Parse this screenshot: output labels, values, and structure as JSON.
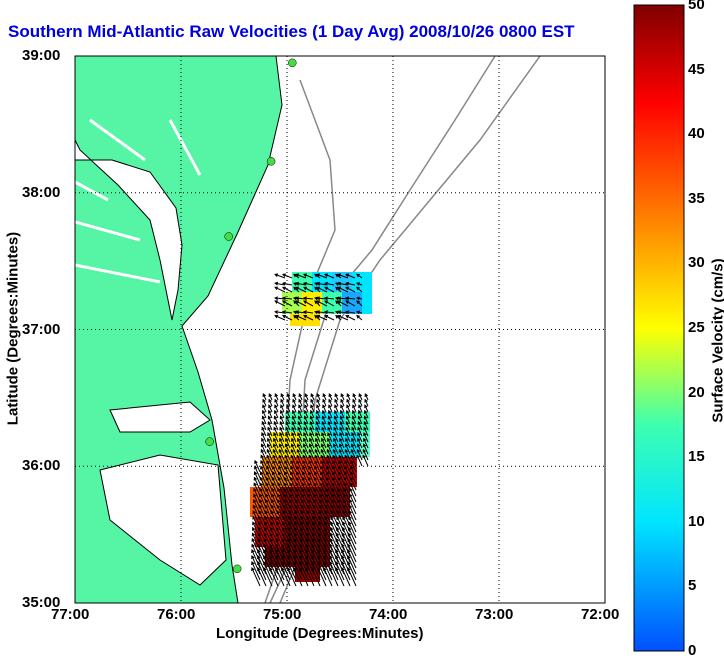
{
  "title": "Southern Mid-Atlantic Raw Velocities (1 Day Avg) 2008/10/26 0800 EST",
  "xlabel": "Longitude (Degrees:Minutes)",
  "ylabel": "Latitude (Degrees:Minutes)",
  "colorbar_label": "Surface Velocity (cm/s)",
  "x_ticks": [
    "77:00",
    "76:00",
    "75:00",
    "74:00",
    "73:00",
    "72:00"
  ],
  "y_ticks": [
    "39:00",
    "38:00",
    "37:00",
    "36:00",
    "35:00"
  ],
  "colorbar_ticks": [
    "0",
    "5",
    "10",
    "15",
    "20",
    "25",
    "30",
    "35",
    "40",
    "45",
    "50"
  ],
  "colors": {
    "land": "#55f5a5",
    "title": "#0000dd",
    "coast": "#000000",
    "bathymetry": "#888888",
    "station": "#44dd44"
  },
  "chart_data": {
    "type": "heatmap",
    "xlim": [
      -77,
      -72
    ],
    "ylim": [
      35,
      39
    ],
    "clim": [
      0,
      50
    ],
    "grid": true,
    "stations": [
      {
        "lon": -74.95,
        "lat": 38.95
      },
      {
        "lon": -75.15,
        "lat": 38.23
      },
      {
        "lon": -75.55,
        "lat": 37.68
      },
      {
        "lon": -75.73,
        "lat": 36.18
      },
      {
        "lon": -75.47,
        "lat": 35.25
      }
    ]
  }
}
